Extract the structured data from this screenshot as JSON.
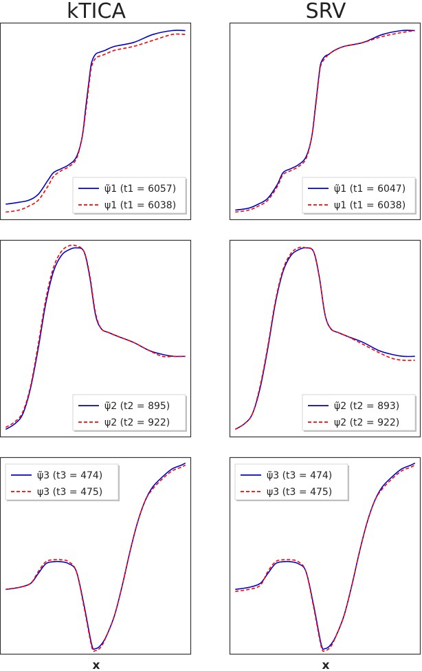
{
  "columns": [
    {
      "title": "kTICA"
    },
    {
      "title": "SRV"
    }
  ],
  "xlabel": "x",
  "colors": {
    "approx": "#0000cc",
    "exact": "#ff0000",
    "frame": "#333333"
  },
  "chart_data": [
    {
      "type": "line",
      "column": "kTICA",
      "row": 1,
      "xlim": [
        0,
        1
      ],
      "ylim": [
        0,
        1
      ],
      "legend": "bottom-right",
      "series": [
        {
          "name": "ψ̃1 (t1 = 6057)",
          "style": "solid",
          "color": "#0000cc",
          "x": [
            0.03,
            0.1,
            0.15,
            0.2,
            0.25,
            0.28,
            0.32,
            0.36,
            0.4,
            0.43,
            0.45,
            0.47,
            0.48,
            0.5,
            0.52,
            0.55,
            0.6,
            0.7,
            0.8,
            0.9,
            0.97
          ],
          "y": [
            0.08,
            0.09,
            0.1,
            0.13,
            0.2,
            0.24,
            0.26,
            0.28,
            0.32,
            0.42,
            0.58,
            0.74,
            0.8,
            0.84,
            0.85,
            0.86,
            0.88,
            0.9,
            0.94,
            0.96,
            0.96
          ]
        },
        {
          "name": "ψ1 (t1 = 6038)",
          "style": "dashed",
          "color": "#ff0000",
          "x": [
            0.03,
            0.1,
            0.15,
            0.2,
            0.25,
            0.28,
            0.32,
            0.36,
            0.4,
            0.43,
            0.45,
            0.47,
            0.48,
            0.5,
            0.52,
            0.55,
            0.6,
            0.7,
            0.8,
            0.9,
            0.97
          ],
          "y": [
            0.04,
            0.05,
            0.07,
            0.1,
            0.17,
            0.22,
            0.25,
            0.27,
            0.31,
            0.42,
            0.56,
            0.72,
            0.78,
            0.82,
            0.83,
            0.84,
            0.86,
            0.88,
            0.91,
            0.94,
            0.94
          ]
        }
      ]
    },
    {
      "type": "line",
      "column": "SRV",
      "row": 1,
      "xlim": [
        0,
        1
      ],
      "ylim": [
        0,
        1
      ],
      "legend": "bottom-right",
      "series": [
        {
          "name": "ψ̃1 (t1 = 6047)",
          "style": "solid",
          "color": "#0000cc",
          "x": [
            0.03,
            0.1,
            0.15,
            0.2,
            0.25,
            0.28,
            0.32,
            0.36,
            0.4,
            0.43,
            0.45,
            0.47,
            0.48,
            0.5,
            0.52,
            0.55,
            0.6,
            0.7,
            0.8,
            0.9,
            0.97
          ],
          "y": [
            0.05,
            0.06,
            0.08,
            0.11,
            0.18,
            0.24,
            0.26,
            0.28,
            0.32,
            0.42,
            0.58,
            0.75,
            0.8,
            0.83,
            0.84,
            0.86,
            0.88,
            0.9,
            0.94,
            0.96,
            0.96
          ]
        },
        {
          "name": "ψ1 (t1 = 6038)",
          "style": "dashed",
          "color": "#ff0000",
          "x": [
            0.03,
            0.1,
            0.15,
            0.2,
            0.25,
            0.28,
            0.32,
            0.36,
            0.4,
            0.43,
            0.45,
            0.47,
            0.48,
            0.5,
            0.52,
            0.55,
            0.6,
            0.7,
            0.8,
            0.9,
            0.97
          ],
          "y": [
            0.04,
            0.05,
            0.07,
            0.1,
            0.17,
            0.23,
            0.25,
            0.27,
            0.31,
            0.42,
            0.57,
            0.74,
            0.79,
            0.82,
            0.84,
            0.86,
            0.88,
            0.9,
            0.93,
            0.95,
            0.96
          ]
        }
      ]
    },
    {
      "type": "line",
      "column": "kTICA",
      "row": 2,
      "xlim": [
        0,
        1
      ],
      "ylim": [
        0,
        1
      ],
      "legend": "bottom-right",
      "series": [
        {
          "name": "ψ̃2 (t2 = 895)",
          "style": "solid",
          "color": "#0000cc",
          "x": [
            0.03,
            0.08,
            0.12,
            0.16,
            0.2,
            0.24,
            0.28,
            0.32,
            0.36,
            0.4,
            0.44,
            0.47,
            0.5,
            0.53,
            0.57,
            0.62,
            0.7,
            0.78,
            0.85,
            0.91,
            0.97
          ],
          "y": [
            0.04,
            0.07,
            0.12,
            0.25,
            0.45,
            0.68,
            0.84,
            0.92,
            0.95,
            0.96,
            0.94,
            0.81,
            0.62,
            0.55,
            0.53,
            0.51,
            0.48,
            0.44,
            0.42,
            0.41,
            0.41
          ]
        },
        {
          "name": "ψ2 (t2 = 922)",
          "style": "dashed",
          "color": "#ff0000",
          "x": [
            0.03,
            0.08,
            0.12,
            0.16,
            0.2,
            0.24,
            0.28,
            0.32,
            0.36,
            0.4,
            0.44,
            0.47,
            0.5,
            0.53,
            0.57,
            0.62,
            0.7,
            0.78,
            0.85,
            0.91,
            0.97
          ],
          "y": [
            0.05,
            0.08,
            0.13,
            0.26,
            0.47,
            0.7,
            0.86,
            0.94,
            0.97,
            0.97,
            0.94,
            0.82,
            0.63,
            0.55,
            0.53,
            0.51,
            0.48,
            0.44,
            0.41,
            0.41,
            0.41
          ]
        }
      ]
    },
    {
      "type": "line",
      "column": "SRV",
      "row": 2,
      "xlim": [
        0,
        1
      ],
      "ylim": [
        0,
        1
      ],
      "legend": "bottom-right",
      "series": [
        {
          "name": "ψ̃2 (t2 = 893)",
          "style": "solid",
          "color": "#0000cc",
          "x": [
            0.03,
            0.08,
            0.12,
            0.16,
            0.2,
            0.24,
            0.28,
            0.32,
            0.36,
            0.4,
            0.44,
            0.47,
            0.5,
            0.53,
            0.57,
            0.62,
            0.7,
            0.78,
            0.85,
            0.91,
            0.97
          ],
          "y": [
            0.04,
            0.07,
            0.12,
            0.25,
            0.45,
            0.68,
            0.84,
            0.92,
            0.95,
            0.96,
            0.94,
            0.81,
            0.62,
            0.55,
            0.53,
            0.51,
            0.48,
            0.44,
            0.42,
            0.41,
            0.41
          ]
        },
        {
          "name": "ψ2 (t2 = 922)",
          "style": "dashed",
          "color": "#ff0000",
          "x": [
            0.03,
            0.08,
            0.12,
            0.16,
            0.2,
            0.24,
            0.28,
            0.32,
            0.36,
            0.4,
            0.44,
            0.47,
            0.5,
            0.53,
            0.57,
            0.62,
            0.7,
            0.78,
            0.85,
            0.91,
            0.97
          ],
          "y": [
            0.04,
            0.07,
            0.12,
            0.26,
            0.46,
            0.69,
            0.85,
            0.93,
            0.96,
            0.96,
            0.94,
            0.81,
            0.62,
            0.55,
            0.53,
            0.51,
            0.47,
            0.43,
            0.4,
            0.39,
            0.39
          ]
        }
      ]
    },
    {
      "type": "line",
      "column": "kTICA",
      "row": 3,
      "xlim": [
        0,
        1
      ],
      "ylim": [
        0,
        1
      ],
      "legend": "top-left",
      "series": [
        {
          "name": "ψ̃3 (t3 = 474)",
          "style": "solid",
          "color": "#0000cc",
          "x": [
            0.03,
            0.1,
            0.16,
            0.2,
            0.24,
            0.28,
            0.32,
            0.36,
            0.4,
            0.44,
            0.48,
            0.5,
            0.53,
            0.56,
            0.6,
            0.64,
            0.68,
            0.72,
            0.76,
            0.8,
            0.85,
            0.9,
            0.95,
            0.97
          ],
          "y": [
            0.33,
            0.34,
            0.36,
            0.41,
            0.46,
            0.47,
            0.47,
            0.46,
            0.42,
            0.25,
            0.05,
            0.03,
            0.05,
            0.1,
            0.2,
            0.35,
            0.52,
            0.67,
            0.78,
            0.85,
            0.9,
            0.94,
            0.96,
            0.97
          ]
        },
        {
          "name": "ψ3 (t3 = 475)",
          "style": "dashed",
          "color": "#ff0000",
          "x": [
            0.03,
            0.1,
            0.16,
            0.2,
            0.24,
            0.28,
            0.32,
            0.36,
            0.4,
            0.44,
            0.48,
            0.5,
            0.53,
            0.56,
            0.6,
            0.64,
            0.68,
            0.72,
            0.76,
            0.8,
            0.85,
            0.9,
            0.95,
            0.97
          ],
          "y": [
            0.33,
            0.34,
            0.36,
            0.42,
            0.47,
            0.48,
            0.48,
            0.47,
            0.42,
            0.24,
            0.04,
            0.02,
            0.04,
            0.1,
            0.2,
            0.35,
            0.52,
            0.67,
            0.78,
            0.84,
            0.89,
            0.93,
            0.95,
            0.96
          ]
        }
      ]
    },
    {
      "type": "line",
      "column": "SRV",
      "row": 3,
      "xlim": [
        0,
        1
      ],
      "ylim": [
        0,
        1
      ],
      "legend": "top-left",
      "series": [
        {
          "name": "ψ̃3 (t3 = 474)",
          "style": "solid",
          "color": "#0000cc",
          "x": [
            0.03,
            0.1,
            0.16,
            0.2,
            0.24,
            0.28,
            0.32,
            0.36,
            0.4,
            0.44,
            0.48,
            0.5,
            0.53,
            0.56,
            0.6,
            0.64,
            0.68,
            0.72,
            0.76,
            0.8,
            0.85,
            0.9,
            0.95,
            0.97
          ],
          "y": [
            0.33,
            0.34,
            0.36,
            0.41,
            0.46,
            0.47,
            0.47,
            0.46,
            0.42,
            0.25,
            0.05,
            0.03,
            0.05,
            0.1,
            0.2,
            0.35,
            0.52,
            0.67,
            0.78,
            0.85,
            0.9,
            0.94,
            0.96,
            0.97
          ]
        },
        {
          "name": "ψ3 (t3 = 475)",
          "style": "dashed",
          "color": "#ff0000",
          "x": [
            0.03,
            0.1,
            0.16,
            0.2,
            0.24,
            0.28,
            0.32,
            0.36,
            0.4,
            0.44,
            0.48,
            0.5,
            0.53,
            0.56,
            0.6,
            0.64,
            0.68,
            0.72,
            0.76,
            0.8,
            0.85,
            0.9,
            0.95,
            0.97
          ],
          "y": [
            0.32,
            0.33,
            0.35,
            0.42,
            0.47,
            0.48,
            0.48,
            0.47,
            0.42,
            0.24,
            0.04,
            0.02,
            0.04,
            0.1,
            0.2,
            0.35,
            0.52,
            0.67,
            0.78,
            0.84,
            0.89,
            0.93,
            0.95,
            0.96
          ]
        }
      ]
    }
  ]
}
